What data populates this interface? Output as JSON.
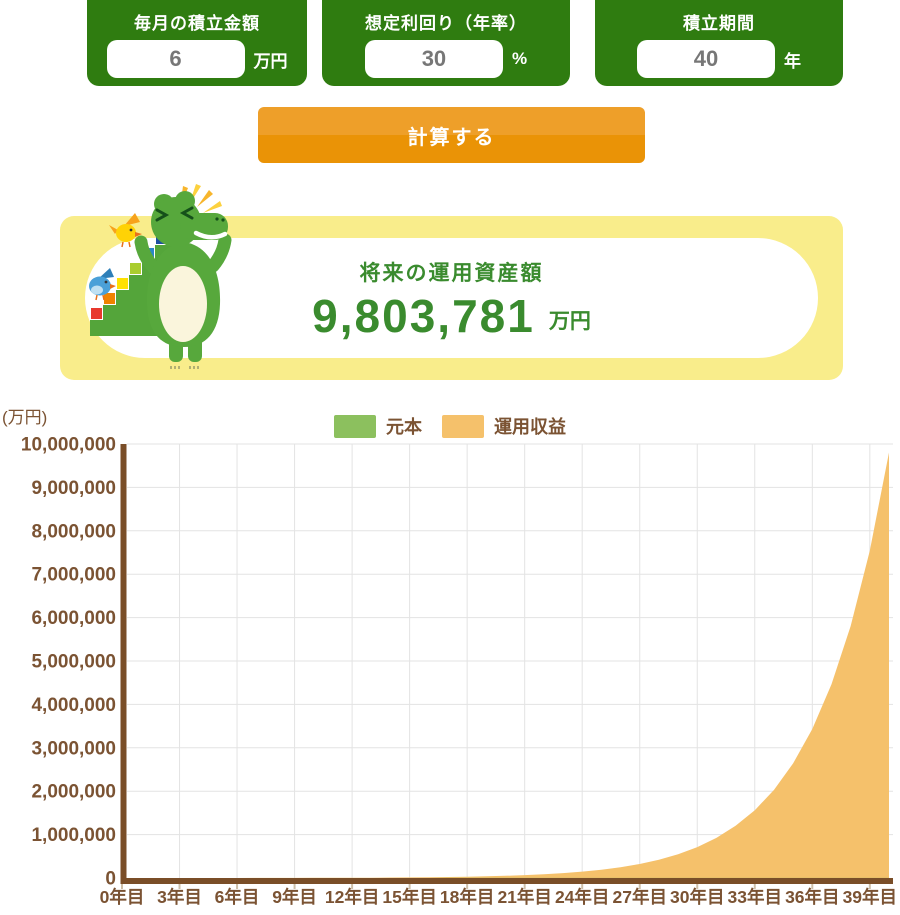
{
  "inputs": [
    {
      "label": "毎月の積立金額",
      "value": "6",
      "unit": "万円"
    },
    {
      "label": "想定利回り（年率）",
      "value": "30",
      "unit": "%"
    },
    {
      "label": "積立期間",
      "value": "40",
      "unit": "年"
    }
  ],
  "calculate_button": "計算する",
  "result": {
    "title": "将来の運用資産額",
    "amount": "9,803,781",
    "unit": "万円"
  },
  "colors": {
    "card_green": "#2f7c10",
    "button_orange_top": "#ee9f29",
    "button_orange_bottom": "#ea9306",
    "panel_yellow": "#f9ed8b",
    "result_green": "#3a8b2e",
    "chart_text_brown": "#7b5333",
    "axis_brown": "#7a4e28",
    "gridline_gray": "#e3e3e3",
    "tick_mark": "#cdbfa9",
    "principal_green": "#8cc05e",
    "returns_orange": "#f5c16b"
  },
  "chart_data": {
    "type": "area",
    "stacked": true,
    "title": "",
    "ylabel_unit": "(万円)",
    "ylim": [
      0,
      10000000
    ],
    "x_years": [
      0,
      1,
      2,
      3,
      4,
      5,
      6,
      7,
      8,
      9,
      10,
      11,
      12,
      13,
      14,
      15,
      16,
      17,
      18,
      19,
      20,
      21,
      22,
      23,
      24,
      25,
      26,
      27,
      28,
      29,
      30,
      31,
      32,
      33,
      34,
      35,
      36,
      37,
      38,
      39,
      40
    ],
    "x_tick_labels": [
      "0年目",
      "3年目",
      "6年目",
      "9年目",
      "12年目",
      "15年目",
      "18年目",
      "21年目",
      "24年目",
      "27年目",
      "30年目",
      "33年目",
      "36年目",
      "39年目"
    ],
    "y_tick_labels": [
      "0",
      "1,000,000",
      "2,000,000",
      "3,000,000",
      "4,000,000",
      "5,000,000",
      "6,000,000",
      "7,000,000",
      "8,000,000",
      "9,000,000",
      "10,000,000"
    ],
    "legend": [
      {
        "label": "元本",
        "color": "#8cc05e"
      },
      {
        "label": "運用収益",
        "color": "#f5c16b"
      }
    ],
    "series": [
      {
        "name": "元本",
        "values": [
          0,
          72,
          144,
          216,
          288,
          360,
          432,
          504,
          576,
          648,
          720,
          792,
          864,
          936,
          1008,
          1080,
          1152,
          1224,
          1296,
          1368,
          1440,
          1512,
          1584,
          1656,
          1728,
          1800,
          1872,
          1944,
          2016,
          2088,
          2160,
          2232,
          2304,
          2376,
          2448,
          2520,
          2592,
          2664,
          2736,
          2808,
          2880
        ]
      },
      {
        "name": "運用収益",
        "values": [
          0,
          9,
          43,
          109,
          216,
          376,
          607,
          928,
          1367,
          1959,
          2751,
          3801,
          5189,
          7014,
          9409,
          12544,
          16640,
          21986,
          28958,
          38044,
          49877,
          65281,
          85328,
          111409,
          145338,
          189467,
          246857,
          321486,
          418525,
          544698,
          708746,
          922032,
          1199326,
          1559830,
          2028505,
          2637762,
          3429818,
          4459513,
          5798139,
          7538375,
          9800901
        ]
      }
    ],
    "legend_position": "top-center",
    "grid": true
  }
}
